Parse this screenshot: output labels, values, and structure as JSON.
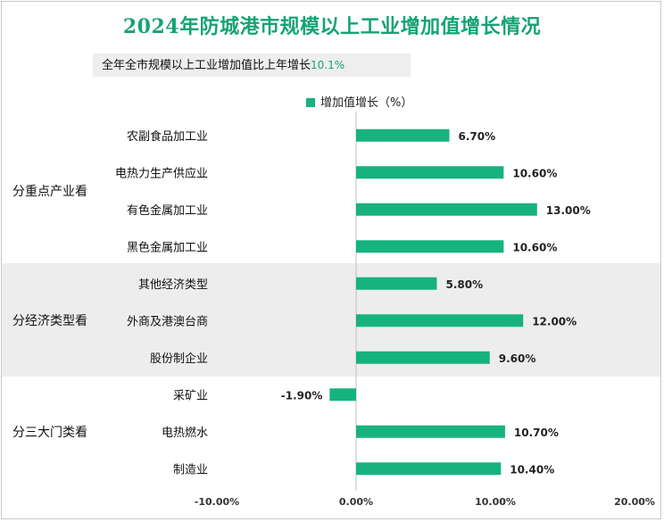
{
  "chart_data": {
    "type": "bar",
    "orientation": "horizontal",
    "title": "2024年防城港市规模以上工业增加值增长情况",
    "summary": {
      "label": "全年全市规模以上工业增加值比上年增长",
      "value": "10.1%"
    },
    "legend": {
      "label": "增加值增长（%）",
      "color": "#16b37f",
      "position": "top"
    },
    "groups": [
      {
        "label": "分重点产业看",
        "shaded": false
      },
      {
        "label": "分经济类型看",
        "shaded": true
      },
      {
        "label": "分三大门类看",
        "shaded": false
      }
    ],
    "categories": [
      "农副食品加工业",
      "电热力生产供应业",
      "有色金属加工业",
      "黑色金属加工业",
      "其他经济类型",
      "外商及港澳台商",
      "股份制企业",
      "采矿业",
      "电热燃水",
      "制造业"
    ],
    "category_groups": [
      0,
      0,
      0,
      0,
      1,
      1,
      1,
      2,
      2,
      2
    ],
    "values": [
      6.7,
      10.6,
      13.0,
      10.6,
      5.8,
      12.0,
      9.6,
      -1.9,
      10.7,
      10.4
    ],
    "value_labels": [
      "6.70%",
      "10.60%",
      "13.00%",
      "10.60%",
      "5.80%",
      "12.00%",
      "9.60%",
      "-1.90%",
      "10.70%",
      "10.40%"
    ],
    "xlim": [
      -10,
      20
    ],
    "xticks": [
      -10,
      0,
      10,
      20
    ],
    "xtick_labels": [
      "-10.00%",
      "0.00%",
      "10.00%",
      "20.00%"
    ],
    "grid": false
  }
}
